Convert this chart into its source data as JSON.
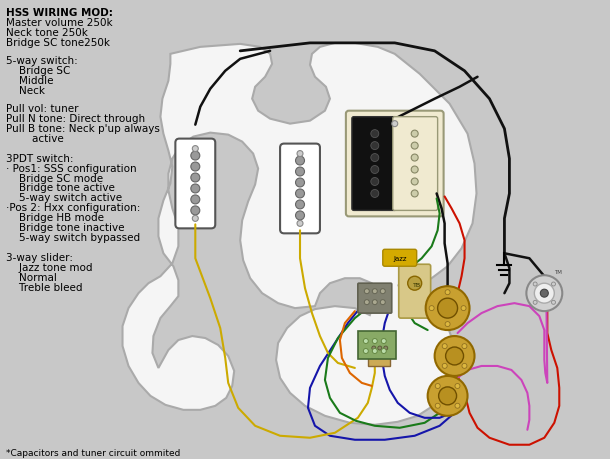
{
  "bg_color": "#c8c8c8",
  "body_color": "#f0f0f0",
  "body_edge": "#aaaaaa",
  "title_text": [
    "HSS WIRING MOD:",
    "Master volume 250k",
    "Neck tone 250k",
    "Bridge SC tone250k"
  ],
  "switch_5way_text": [
    "5-way switch:",
    "    Bridge SC",
    "    Middle",
    "    Neck"
  ],
  "pull_text": [
    "Pull vol: tuner",
    "Pull N tone: Direct through",
    "Pull B tone: Neck p'up always",
    "        active"
  ],
  "pdt_text": [
    "3PDT switch:",
    "· Pos1: SSS configuration",
    "    Bridge SC mode",
    "    Bridge tone active",
    "    5-way switch active",
    "·Pos 2: Hxx configuration:",
    "    Bridge HB mode",
    "    Bridge tone inactive",
    "    5-way switch bypassed"
  ],
  "slider_text": [
    "3-way slider:",
    "    Jazz tone mod",
    "    Normal",
    "    Treble bleed"
  ],
  "footer_text": "*Capacitors and tuner circuit ommited",
  "wires": {
    "black": "#111111",
    "yellow": "#ccaa00",
    "green": "#1a7a1a",
    "red": "#cc1100",
    "blue": "#1515aa",
    "pink": "#cc44bb",
    "orange": "#dd6600",
    "white": "#eeeeee",
    "gray": "#888888",
    "darkgreen": "#006600"
  }
}
